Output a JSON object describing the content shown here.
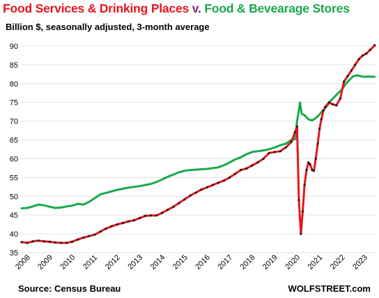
{
  "header": {
    "title_part1": "Food Services & Drinking Places",
    "title_v": "v.",
    "title_part2": "Food & Bevearage Stores",
    "subtitle": "Billion $, seasonally adjusted, 3-month average"
  },
  "footer": {
    "source": "Source: Census Bureau",
    "brand": "WOLFSTREET.com"
  },
  "colors": {
    "restaurants_line": "#e8141c",
    "restaurants_dots": "#1a1a1a",
    "grocery_line": "#1aa84a",
    "title_red": "#e8141c",
    "title_purple": "#7b2c8c",
    "title_green": "#1aa84a",
    "grid": "#e2e2e2"
  },
  "chart_data": {
    "type": "line",
    "title": "Food Services & Drinking Places v. Food & Bevearage Stores",
    "subtitle": "Billion $, seasonally adjusted, 3-month average",
    "xlabel": "",
    "ylabel": "",
    "xlim": [
      2008.0,
      2023.8
    ],
    "ylim": [
      35,
      90
    ],
    "yticks": [
      35,
      40,
      45,
      50,
      55,
      60,
      65,
      70,
      75,
      80,
      85,
      90
    ],
    "xticks": [
      "2008",
      "2009",
      "2010",
      "2011",
      "2012",
      "2013",
      "2014",
      "2015",
      "2016",
      "2017",
      "2018",
      "2019",
      "2020",
      "2021",
      "2022",
      "2023"
    ],
    "grid": "horizontal",
    "series": [
      {
        "name": "Food Services & Drinking Places",
        "points": [
          [
            2008.0,
            37.8
          ],
          [
            2008.25,
            37.6
          ],
          [
            2008.5,
            38.0
          ],
          [
            2008.75,
            38.2
          ],
          [
            2009.0,
            38.0
          ],
          [
            2009.25,
            37.9
          ],
          [
            2009.5,
            37.7
          ],
          [
            2009.75,
            37.6
          ],
          [
            2010.0,
            37.6
          ],
          [
            2010.25,
            37.9
          ],
          [
            2010.5,
            38.5
          ],
          [
            2010.75,
            39.0
          ],
          [
            2011.0,
            39.4
          ],
          [
            2011.25,
            39.8
          ],
          [
            2011.5,
            40.6
          ],
          [
            2011.75,
            41.4
          ],
          [
            2012.0,
            42.0
          ],
          [
            2012.25,
            42.5
          ],
          [
            2012.5,
            42.9
          ],
          [
            2012.75,
            43.3
          ],
          [
            2013.0,
            43.6
          ],
          [
            2013.25,
            44.2
          ],
          [
            2013.5,
            44.8
          ],
          [
            2013.75,
            44.9
          ],
          [
            2014.0,
            44.9
          ],
          [
            2014.25,
            45.6
          ],
          [
            2014.5,
            46.4
          ],
          [
            2014.75,
            47.2
          ],
          [
            2015.0,
            48.2
          ],
          [
            2015.25,
            49.2
          ],
          [
            2015.5,
            50.2
          ],
          [
            2015.75,
            51.0
          ],
          [
            2016.0,
            51.8
          ],
          [
            2016.25,
            52.4
          ],
          [
            2016.5,
            53.0
          ],
          [
            2016.75,
            53.6
          ],
          [
            2017.0,
            54.2
          ],
          [
            2017.25,
            55.0
          ],
          [
            2017.5,
            56.0
          ],
          [
            2017.75,
            57.0
          ],
          [
            2018.0,
            57.4
          ],
          [
            2018.25,
            58.2
          ],
          [
            2018.5,
            59.0
          ],
          [
            2018.75,
            60.0
          ],
          [
            2019.0,
            61.5
          ],
          [
            2019.25,
            61.8
          ],
          [
            2019.5,
            62.0
          ],
          [
            2019.75,
            63.0
          ],
          [
            2020.0,
            64.5
          ],
          [
            2020.15,
            67.0
          ],
          [
            2020.25,
            68.6
          ],
          [
            2020.33,
            49.0
          ],
          [
            2020.42,
            40.0
          ],
          [
            2020.5,
            46.0
          ],
          [
            2020.58,
            53.0
          ],
          [
            2020.67,
            57.0
          ],
          [
            2020.75,
            59.0
          ],
          [
            2020.83,
            58.5
          ],
          [
            2020.92,
            57.0
          ],
          [
            2021.0,
            56.8
          ],
          [
            2021.08,
            60.0
          ],
          [
            2021.17,
            64.0
          ],
          [
            2021.25,
            68.0
          ],
          [
            2021.33,
            70.5
          ],
          [
            2021.42,
            72.8
          ],
          [
            2021.5,
            73.8
          ],
          [
            2021.67,
            75.0
          ],
          [
            2021.83,
            74.5
          ],
          [
            2022.0,
            74.2
          ],
          [
            2022.17,
            76.0
          ],
          [
            2022.33,
            80.5
          ],
          [
            2022.5,
            82.0
          ],
          [
            2022.67,
            83.5
          ],
          [
            2022.83,
            85.0
          ],
          [
            2023.0,
            86.5
          ],
          [
            2023.17,
            87.5
          ],
          [
            2023.33,
            88.0
          ],
          [
            2023.5,
            89.0
          ],
          [
            2023.7,
            90.2
          ]
        ]
      },
      {
        "name": "Food & Bevearage Stores",
        "points": [
          [
            2008.0,
            46.8
          ],
          [
            2008.25,
            46.9
          ],
          [
            2008.5,
            47.3
          ],
          [
            2008.75,
            47.8
          ],
          [
            2009.0,
            47.6
          ],
          [
            2009.25,
            47.2
          ],
          [
            2009.5,
            46.9
          ],
          [
            2009.75,
            47.0
          ],
          [
            2010.0,
            47.3
          ],
          [
            2010.25,
            47.5
          ],
          [
            2010.5,
            48.0
          ],
          [
            2010.75,
            47.8
          ],
          [
            2011.0,
            48.5
          ],
          [
            2011.25,
            49.5
          ],
          [
            2011.5,
            50.5
          ],
          [
            2011.75,
            50.9
          ],
          [
            2012.0,
            51.3
          ],
          [
            2012.25,
            51.7
          ],
          [
            2012.5,
            52.0
          ],
          [
            2012.75,
            52.3
          ],
          [
            2013.0,
            52.5
          ],
          [
            2013.25,
            52.7
          ],
          [
            2013.5,
            53.0
          ],
          [
            2013.75,
            53.3
          ],
          [
            2014.0,
            53.8
          ],
          [
            2014.25,
            54.5
          ],
          [
            2014.5,
            55.2
          ],
          [
            2014.75,
            55.8
          ],
          [
            2015.0,
            56.4
          ],
          [
            2015.25,
            56.8
          ],
          [
            2015.5,
            57.0
          ],
          [
            2015.75,
            57.1
          ],
          [
            2016.0,
            57.2
          ],
          [
            2016.25,
            57.3
          ],
          [
            2016.5,
            57.5
          ],
          [
            2016.75,
            57.7
          ],
          [
            2017.0,
            58.3
          ],
          [
            2017.25,
            59.0
          ],
          [
            2017.5,
            59.8
          ],
          [
            2017.75,
            60.4
          ],
          [
            2018.0,
            61.2
          ],
          [
            2018.25,
            61.8
          ],
          [
            2018.5,
            62.0
          ],
          [
            2018.75,
            62.2
          ],
          [
            2019.0,
            62.5
          ],
          [
            2019.25,
            63.0
          ],
          [
            2019.5,
            63.6
          ],
          [
            2019.75,
            64.0
          ],
          [
            2020.0,
            65.0
          ],
          [
            2020.17,
            65.2
          ],
          [
            2020.25,
            70.0
          ],
          [
            2020.33,
            73.0
          ],
          [
            2020.38,
            75.0
          ],
          [
            2020.45,
            72.0
          ],
          [
            2020.6,
            71.5
          ],
          [
            2020.75,
            70.5
          ],
          [
            2020.92,
            70.2
          ],
          [
            2021.08,
            70.8
          ],
          [
            2021.25,
            71.8
          ],
          [
            2021.42,
            73.0
          ],
          [
            2021.58,
            74.0
          ],
          [
            2021.75,
            75.5
          ],
          [
            2021.92,
            76.5
          ],
          [
            2022.08,
            77.5
          ],
          [
            2022.25,
            78.5
          ],
          [
            2022.42,
            80.0
          ],
          [
            2022.58,
            81.0
          ],
          [
            2022.75,
            82.0
          ],
          [
            2022.92,
            82.2
          ],
          [
            2023.08,
            82.0
          ],
          [
            2023.25,
            81.8
          ],
          [
            2023.42,
            81.9
          ],
          [
            2023.7,
            81.8
          ]
        ]
      }
    ]
  }
}
